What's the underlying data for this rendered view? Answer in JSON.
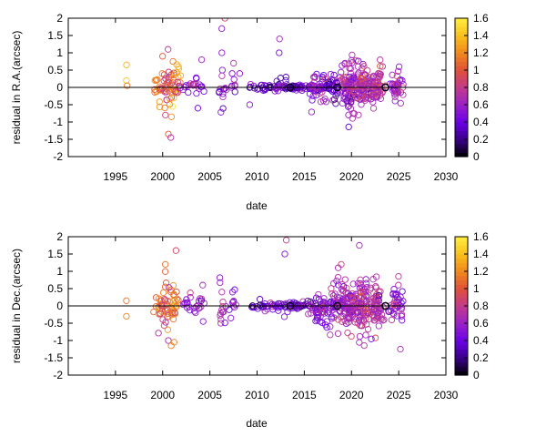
{
  "colorbar": {
    "ticks": [
      "0",
      "0.2",
      "0.4",
      "0.6",
      "0.8",
      "1",
      "1.2",
      "1.4",
      "1.6"
    ],
    "range": [
      0,
      1.6
    ],
    "palette": [
      "#000000",
      "#3a0088",
      "#6a00e6",
      "#9a22c8",
      "#c23a8c",
      "#e0503a",
      "#f0881c",
      "#fac01c",
      "#ffee40"
    ]
  },
  "chart_data": [
    {
      "type": "scatter",
      "xlabel": "date",
      "ylabel": "residual in R.A.(arcsec)",
      "xlim": [
        1990,
        2030
      ],
      "ylim": [
        -2,
        2
      ],
      "xticks": [
        "1995",
        "2000",
        "2005",
        "2010",
        "2015",
        "2020",
        "2025",
        "2030"
      ],
      "yticks": [
        "-2",
        "-1.5",
        "-1",
        "-0.5",
        "0",
        "0.5",
        "1",
        "1.5",
        "2"
      ],
      "zero_line": true,
      "marker": "open-circle",
      "color_scale": "0-1.6",
      "clusters": [
        {
          "x": 1996.2,
          "sx": 0.1,
          "n": 3,
          "sy": 0.35,
          "y": [
            0.65,
            0.2,
            0.05
          ],
          "c": 1.2
        },
        {
          "x": 1999.6,
          "sx": 0.25,
          "n": 14,
          "sy": 0.35,
          "c": 1.1
        },
        {
          "x": 2000.4,
          "sx": 0.3,
          "n": 30,
          "sy": 0.5,
          "c": 0.95,
          "y": [
            1.1,
            0.9,
            -1.35,
            -1.45,
            -0.8
          ]
        },
        {
          "x": 2001.2,
          "sx": 0.3,
          "n": 28,
          "sy": 0.35,
          "c": 1.15,
          "y": [
            0.75,
            0.6,
            -0.55
          ]
        },
        {
          "x": 2002.5,
          "sx": 0.5,
          "n": 12,
          "sy": 0.15,
          "c": 0.6
        },
        {
          "x": 2003.8,
          "sx": 0.3,
          "n": 14,
          "sy": 0.25,
          "c": 0.55,
          "y": [
            0.8,
            -0.6
          ]
        },
        {
          "x": 2006.3,
          "sx": 0.2,
          "n": 16,
          "sy": 0.35,
          "c": 0.65,
          "y": [
            2.0,
            1.7,
            1.0,
            0.5
          ]
        },
        {
          "x": 2007.4,
          "sx": 0.2,
          "n": 10,
          "sy": 0.2,
          "c": 0.55,
          "y": [
            0.4,
            0.7
          ]
        },
        {
          "x": 2009.5,
          "sx": 0.3,
          "n": 5,
          "sy": 0.15,
          "c": 0.5,
          "y": [
            -0.5
          ]
        },
        {
          "x": 2011.0,
          "sx": 0.6,
          "n": 24,
          "sy": 0.06,
          "c": 0.4
        },
        {
          "x": 2012.6,
          "sx": 0.3,
          "n": 16,
          "sy": 0.2,
          "c": 0.45,
          "y": [
            1.4,
            1.0
          ]
        },
        {
          "x": 2014.2,
          "sx": 0.8,
          "n": 50,
          "sy": 0.05,
          "c": 0.35
        },
        {
          "x": 2016.3,
          "sx": 0.5,
          "n": 45,
          "sy": 0.25,
          "c": 0.5
        },
        {
          "x": 2018.0,
          "sx": 0.6,
          "n": 55,
          "sy": 0.22,
          "c": 0.45
        },
        {
          "x": 2019.8,
          "sx": 0.5,
          "n": 90,
          "sy": 0.4,
          "c": 0.65
        },
        {
          "x": 2021.2,
          "sx": 0.5,
          "n": 85,
          "sy": 0.35,
          "c": 0.7
        },
        {
          "x": 2022.7,
          "sx": 0.4,
          "n": 60,
          "sy": 0.35,
          "c": 0.7
        },
        {
          "x": 2024.8,
          "sx": 0.4,
          "n": 40,
          "sy": 0.25,
          "c": 0.6
        }
      ],
      "highlighted_points": [
        {
          "x": 2013.5,
          "y": 0.0,
          "c": 0.05
        },
        {
          "x": 2018.5,
          "y": 0.0,
          "c": 0.05
        },
        {
          "x": 2023.6,
          "y": 0.0,
          "c": 0.05
        }
      ]
    },
    {
      "type": "scatter",
      "xlabel": "date",
      "ylabel": "residual in Dec.(arcsec)",
      "xlim": [
        1990,
        2030
      ],
      "ylim": [
        -2,
        2
      ],
      "xticks": [
        "1995",
        "2000",
        "2005",
        "2010",
        "2015",
        "2020",
        "2025",
        "2030"
      ],
      "yticks": [
        "-2",
        "-1.5",
        "-1",
        "-0.5",
        "0",
        "0.5",
        "1",
        "1.5",
        "2"
      ],
      "zero_line": true,
      "marker": "open-circle",
      "color_scale": "0-1.6",
      "clusters": [
        {
          "x": 1996.2,
          "sx": 0.1,
          "n": 2,
          "sy": 0.3,
          "y": [
            0.15,
            -0.3
          ],
          "c": 1.2
        },
        {
          "x": 1999.6,
          "sx": 0.25,
          "n": 14,
          "sy": 0.35,
          "c": 1.1
        },
        {
          "x": 2000.4,
          "sx": 0.3,
          "n": 30,
          "sy": 0.45,
          "c": 0.95,
          "y": [
            1.2,
            -1.0
          ]
        },
        {
          "x": 2001.2,
          "sx": 0.3,
          "n": 26,
          "sy": 0.35,
          "c": 1.15,
          "y": [
            1.6,
            -1.05,
            -1.15
          ]
        },
        {
          "x": 2002.5,
          "sx": 0.5,
          "n": 12,
          "sy": 0.2,
          "c": 0.6
        },
        {
          "x": 2003.8,
          "sx": 0.3,
          "n": 14,
          "sy": 0.2,
          "c": 0.55,
          "y": [
            0.6,
            -0.45
          ]
        },
        {
          "x": 2006.3,
          "sx": 0.2,
          "n": 14,
          "sy": 0.3,
          "c": 0.65,
          "y": [
            0.4,
            -0.5
          ]
        },
        {
          "x": 2007.4,
          "sx": 0.2,
          "n": 10,
          "sy": 0.2,
          "c": 0.55,
          "y": [
            0.4,
            -0.35
          ]
        },
        {
          "x": 2009.5,
          "sx": 0.3,
          "n": 4,
          "sy": 0.15,
          "c": 0.5
        },
        {
          "x": 2011.0,
          "sx": 0.6,
          "n": 24,
          "sy": 0.08,
          "c": 0.4
        },
        {
          "x": 2012.6,
          "sx": 0.3,
          "n": 14,
          "sy": 0.2,
          "c": 0.45,
          "y": [
            1.9,
            1.5
          ]
        },
        {
          "x": 2014.2,
          "sx": 0.8,
          "n": 50,
          "sy": 0.07,
          "c": 0.35
        },
        {
          "x": 2016.3,
          "sx": 0.5,
          "n": 45,
          "sy": 0.3,
          "c": 0.5
        },
        {
          "x": 2018.0,
          "sx": 0.6,
          "n": 60,
          "sy": 0.35,
          "c": 0.55,
          "y": [
            1.2,
            1.1,
            -0.8
          ]
        },
        {
          "x": 2019.8,
          "sx": 0.5,
          "n": 90,
          "sy": 0.45,
          "c": 0.65
        },
        {
          "x": 2021.2,
          "sx": 0.5,
          "n": 85,
          "sy": 0.45,
          "c": 0.7,
          "y": [
            1.75
          ]
        },
        {
          "x": 2022.7,
          "sx": 0.4,
          "n": 60,
          "sy": 0.4,
          "c": 0.7
        },
        {
          "x": 2024.8,
          "sx": 0.4,
          "n": 40,
          "sy": 0.35,
          "c": 0.6,
          "y": [
            -1.25
          ]
        }
      ],
      "highlighted_points": [
        {
          "x": 2013.5,
          "y": 0.0,
          "c": 0.05
        },
        {
          "x": 2018.5,
          "y": 0.0,
          "c": 0.05
        },
        {
          "x": 2023.6,
          "y": 0.0,
          "c": 0.05
        }
      ]
    }
  ]
}
